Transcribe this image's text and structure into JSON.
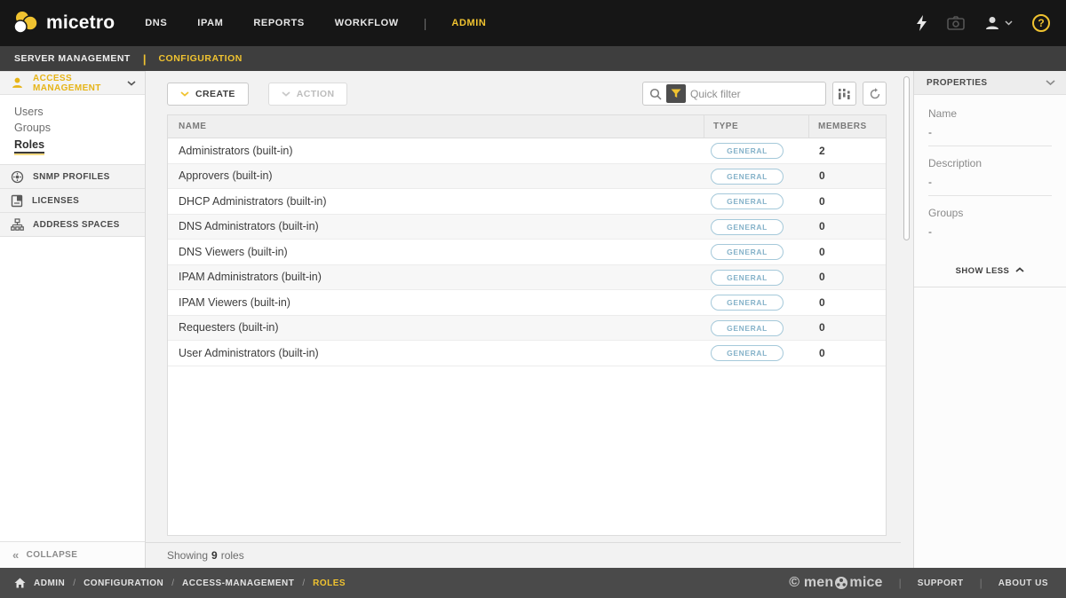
{
  "topnav": {
    "brand": "micetro",
    "items": [
      {
        "label": "DNS",
        "active": false
      },
      {
        "label": "IPAM",
        "active": false
      },
      {
        "label": "REPORTS",
        "active": false
      },
      {
        "label": "WORKFLOW",
        "active": false
      },
      {
        "label": "ADMIN",
        "active": true
      }
    ]
  },
  "subnav": {
    "items": [
      {
        "label": "SERVER MANAGEMENT",
        "active": false
      },
      {
        "label": "CONFIGURATION",
        "active": true
      }
    ]
  },
  "sidebar": {
    "access_management": {
      "label": "ACCESS MANAGEMENT",
      "icon": "user-icon",
      "items": [
        {
          "label": "Users",
          "active": false
        },
        {
          "label": "Groups",
          "active": false
        },
        {
          "label": "Roles",
          "active": true
        }
      ]
    },
    "sections": [
      {
        "label": "SNMP PROFILES",
        "icon": "snmp-profiles-icon"
      },
      {
        "label": "LICENSES",
        "icon": "licenses-icon"
      },
      {
        "label": "ADDRESS SPACES",
        "icon": "address-spaces-icon"
      }
    ],
    "collapse_label": "COLLAPSE"
  },
  "toolbar": {
    "create_label": "CREATE",
    "action_label": "ACTION",
    "quick_filter_placeholder": "Quick filter"
  },
  "table": {
    "columns": [
      "NAME",
      "TYPE",
      "MEMBERS"
    ],
    "rows": [
      {
        "name": "Administrators (built-in)",
        "type": "GENERAL",
        "members": "2"
      },
      {
        "name": "Approvers (built-in)",
        "type": "GENERAL",
        "members": "0"
      },
      {
        "name": "DHCP Administrators (built-in)",
        "type": "GENERAL",
        "members": "0"
      },
      {
        "name": "DNS Administrators (built-in)",
        "type": "GENERAL",
        "members": "0"
      },
      {
        "name": "DNS Viewers (built-in)",
        "type": "GENERAL",
        "members": "0"
      },
      {
        "name": "IPAM Administrators (built-in)",
        "type": "GENERAL",
        "members": "0"
      },
      {
        "name": "IPAM Viewers (built-in)",
        "type": "GENERAL",
        "members": "0"
      },
      {
        "name": "Requesters (built-in)",
        "type": "GENERAL",
        "members": "0"
      },
      {
        "name": "User Administrators (built-in)",
        "type": "GENERAL",
        "members": "0"
      }
    ],
    "status_prefix": "Showing",
    "status_count": "9",
    "status_suffix": "roles"
  },
  "properties": {
    "title": "PROPERTIES",
    "fields": [
      {
        "label": "Name",
        "value": "-"
      },
      {
        "label": "Description",
        "value": "-"
      },
      {
        "label": "Groups",
        "value": "-"
      }
    ],
    "show_less_label": "SHOW LESS"
  },
  "footer": {
    "breadcrumb": [
      "ADMIN",
      "CONFIGURATION",
      "ACCESS-MANAGEMENT",
      "ROLES"
    ],
    "copy_left": "© men",
    "copy_right": "mice",
    "links": [
      "SUPPORT",
      "ABOUT US"
    ]
  },
  "colors": {
    "accent": "#f0c330",
    "badge": "#85b2c9",
    "topnav_bg": "#161616",
    "footer_bg": "#4a4a4a"
  }
}
